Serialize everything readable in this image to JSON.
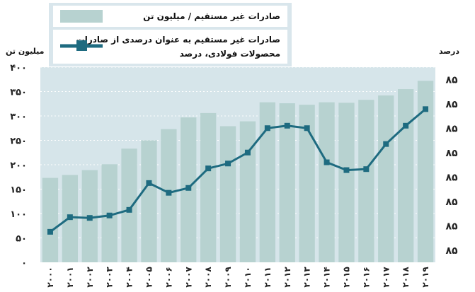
{
  "legend": {
    "bar_label": "صادرات غیر مستقیم  / میلیون تن",
    "line_label": "صادرات غیر مستقیم به عنوان درصدی از صادرات\nمحصولات فولادی، درصد"
  },
  "axes": {
    "left_unit": "میلیون تن",
    "right_unit": "درصد"
  },
  "colors": {
    "bar": "#b7d2d0",
    "line": "#1e6b80",
    "legend_bg": "#d9e6ec"
  },
  "chart_data": {
    "type": "bar+line",
    "categories": [
      "۲۰۰۰",
      "۲۰۰۱",
      "۲۰۰۲",
      "۲۰۰۳",
      "۲۰۰۴",
      "۲۰۰۵",
      "۲۰۰۶",
      "۲۰۰۷",
      "۲۰۰۸",
      "۲۰۰۹",
      "۲۰۱۰",
      "۲۰۱۱",
      "۲۰۱۲",
      "۲۰۱۳",
      "۲۰۱۴",
      "۲۰۱۵",
      "۲۰۱۶",
      "۲۰۱۷",
      "۲۰۱۸",
      "۲۰۱۹"
    ],
    "left_ylim": [
      0,
      400
    ],
    "left_ticks": [
      "۰",
      "۵۰",
      "۱۰۰",
      "۱۵۰",
      "۲۰۰",
      "۲۵۰",
      "۳۰۰",
      "۳۵۰",
      "۴۰۰"
    ],
    "left_tick_values": [
      0,
      50,
      100,
      150,
      200,
      250,
      300,
      350,
      400
    ],
    "right_ylim": [
      0,
      8
    ],
    "right_ticks": [
      "۸۵",
      "۸۵",
      "۸۵",
      "۸۵",
      "۸۵",
      "۸۵",
      "۸۵",
      "۸۵"
    ],
    "right_tick_values": [
      0.5,
      1.5,
      2.5,
      3.5,
      4.5,
      5.5,
      6.5,
      7.5
    ],
    "series": [
      {
        "name": "صادرات غیر مستقیم  / میلیون تن",
        "kind": "bar",
        "axis": "left",
        "values": [
          173,
          179,
          189,
          201,
          233,
          250,
          273,
          297,
          306,
          279,
          289,
          328,
          326,
          323,
          328,
          327,
          333,
          342,
          355,
          372
        ]
      },
      {
        "name": "صادرات غیر مستقیم به عنوان درصدی از صادرات محصولات فولادی، درصد",
        "kind": "line",
        "axis": "right",
        "values": [
          1.25,
          1.85,
          1.82,
          1.92,
          2.15,
          3.25,
          2.85,
          3.05,
          3.85,
          4.05,
          4.5,
          5.5,
          5.6,
          5.5,
          4.1,
          3.78,
          3.82,
          4.85,
          5.6,
          6.28
        ]
      }
    ]
  }
}
